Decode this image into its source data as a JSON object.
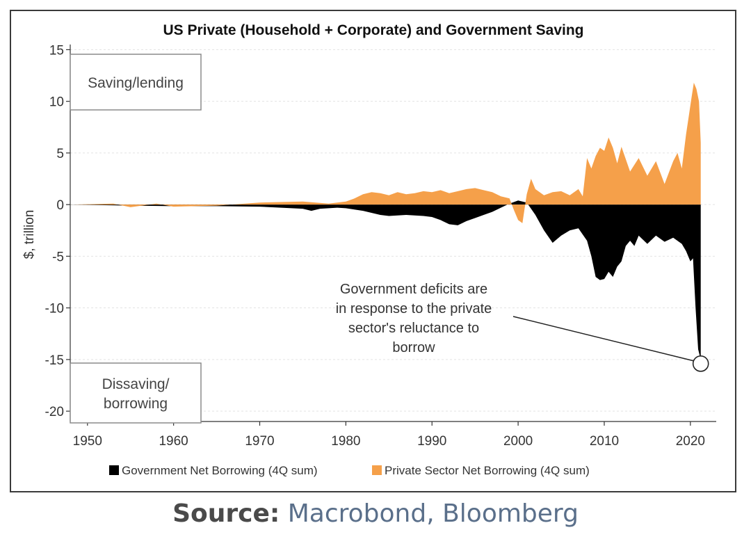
{
  "chart_data": {
    "type": "area",
    "title": "US Private (Household + Corporate) and Government Saving",
    "xlabel": "",
    "ylabel": "$, trillion",
    "xlim": [
      1948,
      2023
    ],
    "ylim": [
      -21,
      15.5
    ],
    "xticks": [
      1950,
      1960,
      1970,
      1980,
      1990,
      2000,
      2010,
      2020
    ],
    "yticks": [
      15,
      10,
      5,
      0,
      -5,
      -10,
      -15,
      -20
    ],
    "grid": "horizontal dashed",
    "legend_position": "bottom",
    "series": [
      {
        "name": "Government Net Borrowing (4Q sum)",
        "color": "#000000",
        "x": [
          1948,
          1955,
          1960,
          1965,
          1970,
          1975,
          1976,
          1977,
          1979,
          1980,
          1982,
          1984,
          1985,
          1987,
          1989,
          1990,
          1991,
          1992,
          1993,
          1994,
          1995,
          1996,
          1997,
          1998,
          1999,
          2000,
          2001,
          2002,
          2003,
          2004,
          2005,
          2006,
          2007,
          2008,
          2008.5,
          2009,
          2009.5,
          2010,
          2010.5,
          2011,
          2011.5,
          2012,
          2012.5,
          2013,
          2013.5,
          2014,
          2015,
          2016,
          2017,
          2018,
          2019,
          2019.5,
          2020,
          2020.3,
          2020.6,
          2020.9,
          2021.2
        ],
        "values": [
          0,
          -0.1,
          -0.15,
          -0.15,
          -0.2,
          -0.4,
          -0.6,
          -0.4,
          -0.3,
          -0.35,
          -0.6,
          -1.0,
          -1.1,
          -1.0,
          -1.1,
          -1.2,
          -1.5,
          -1.9,
          -2.0,
          -1.6,
          -1.3,
          -1.0,
          -0.7,
          -0.3,
          0.1,
          0.4,
          0.2,
          -1.0,
          -2.5,
          -3.7,
          -3.0,
          -2.5,
          -2.3,
          -3.5,
          -5.0,
          -7.0,
          -7.3,
          -7.2,
          -6.5,
          -7.0,
          -6.0,
          -5.5,
          -4.0,
          -3.5,
          -4.0,
          -3.0,
          -3.8,
          -3.0,
          -3.6,
          -3.2,
          -3.8,
          -4.5,
          -5.5,
          -5.2,
          -10.0,
          -14.0,
          -15.0
        ]
      },
      {
        "name": "Private Sector Net Borrowing (4Q sum)",
        "color": "#f5a04a",
        "x": [
          1948,
          1953,
          1955,
          1958,
          1960,
          1965,
          1970,
          1975,
          1978,
          1980,
          1981,
          1982,
          1983,
          1984,
          1985,
          1986,
          1987,
          1988,
          1989,
          1990,
          1991,
          1992,
          1993,
          1994,
          1995,
          1996,
          1997,
          1998,
          1999,
          1999.5,
          2000,
          2000.5,
          2001,
          2001.5,
          2002,
          2003,
          2004,
          2005,
          2006,
          2007,
          2007.5,
          2008,
          2008.5,
          2009,
          2009.5,
          2010,
          2010.5,
          2011,
          2011.5,
          2012,
          2013,
          2014,
          2015,
          2016,
          2017,
          2018,
          2018.5,
          2019,
          2019.5,
          2019.8,
          2020.1,
          2020.4,
          2020.7,
          2021.0,
          2021.2
        ],
        "values": [
          0,
          0.1,
          -0.25,
          0.1,
          -0.2,
          -0.1,
          0.2,
          0.3,
          0.1,
          0.3,
          0.6,
          1.0,
          1.2,
          1.1,
          0.9,
          1.2,
          1.0,
          1.1,
          1.3,
          1.2,
          1.4,
          1.1,
          1.3,
          1.5,
          1.6,
          1.4,
          1.2,
          0.8,
          0.6,
          -0.5,
          -1.5,
          -1.8,
          1.0,
          2.5,
          1.5,
          0.9,
          1.2,
          1.3,
          0.9,
          1.5,
          0.8,
          4.5,
          3.5,
          4.7,
          5.5,
          5.2,
          6.5,
          5.5,
          4.0,
          5.6,
          3.2,
          4.5,
          2.8,
          4.2,
          2.0,
          4.2,
          5.0,
          3.5,
          6.8,
          8.5,
          10.2,
          11.8,
          11.2,
          10.0,
          6.0
        ]
      }
    ],
    "annotations": {
      "top_box": "Saving/lending",
      "bottom_box_line1": "Dissaving/",
      "bottom_box_line2": "borrowing",
      "callout_lines": [
        "Government deficits are",
        "in response to the private",
        "sector's reluctance to",
        "borrow"
      ],
      "callout_point": {
        "x": 2021.2,
        "y": -15.4
      }
    }
  },
  "source": {
    "label": "Source:",
    "text": "Macrobond, Bloomberg"
  }
}
